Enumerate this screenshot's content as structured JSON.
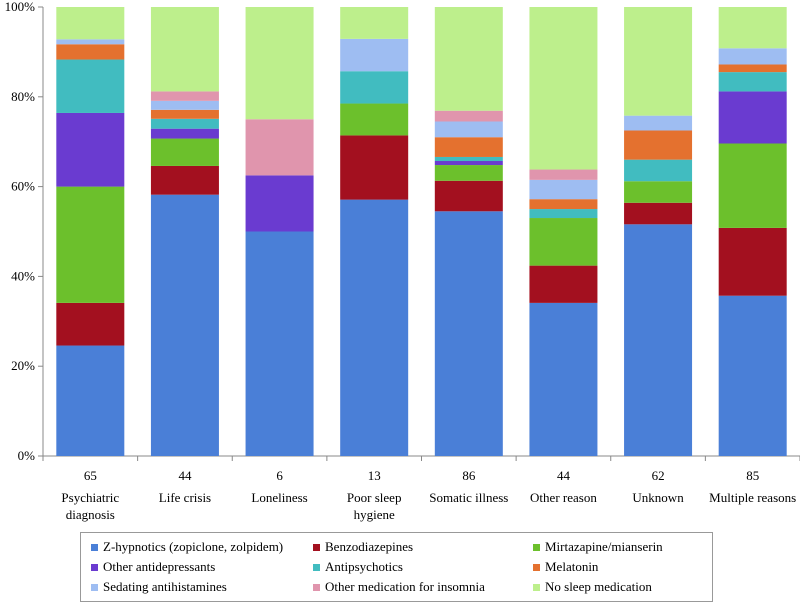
{
  "colors": {
    "Z-hypnotics (zopiclone, zolpidem)": "#4a7fd7",
    "Benzodiazepines": "#a3101f",
    "Mirtazapine/mianserin": "#6cc02c",
    "Other antidepressants": "#6a3bd0",
    "Antipsychotics": "#41bcc0",
    "Melatonin": "#e4712f",
    "Sedating antihistamines": "#9ebdf2",
    "Other medication for insomnia": "#e095ad",
    "No sleep medication": "#bdef8c"
  },
  "chart_data": {
    "type": "bar",
    "stacked": true,
    "title": "",
    "xlabel": "",
    "ylabel": "",
    "ylim": [
      0,
      100
    ],
    "yticks": [
      "0%",
      "20%",
      "40%",
      "60%",
      "80%",
      "100%"
    ],
    "categories": [
      "Psychiatric diagnosis",
      "Life crisis",
      "Loneliness",
      "Poor sleep hygiene",
      "Somatic illness",
      "Other reason",
      "Unknown",
      "Multiple reasons"
    ],
    "category_lines": [
      [
        "Psychiatric",
        "diagnosis"
      ],
      [
        "Life crisis"
      ],
      [
        "Loneliness"
      ],
      [
        "Poor sleep",
        "hygiene"
      ],
      [
        "Somatic illness"
      ],
      [
        "Other reason"
      ],
      [
        "Unknown"
      ],
      [
        "Multiple reasons"
      ]
    ],
    "counts": [
      "65",
      "44",
      "6",
      "13",
      "86",
      "44",
      "62",
      "85"
    ],
    "legend_position": "bottom",
    "series": [
      {
        "name": "Z-hypnotics (zopiclone, zolpidem)",
        "values": [
          24.6,
          58.2,
          50.0,
          57.1,
          54.5,
          34.1,
          51.6,
          35.7
        ]
      },
      {
        "name": "Benzodiazepines",
        "values": [
          9.5,
          6.4,
          0.0,
          14.3,
          6.8,
          8.3,
          4.8,
          15.1
        ]
      },
      {
        "name": "Mirtazapine/mianserin",
        "values": [
          25.9,
          6.1,
          0.0,
          7.1,
          3.5,
          10.6,
          4.8,
          18.8
        ]
      },
      {
        "name": "Other antidepressants",
        "values": [
          16.4,
          2.2,
          12.5,
          0.0,
          0.9,
          0.0,
          0.0,
          11.6
        ]
      },
      {
        "name": "Antipsychotics",
        "values": [
          11.9,
          2.2,
          0.0,
          7.2,
          0.9,
          2.0,
          4.8,
          4.3
        ]
      },
      {
        "name": "Melatonin",
        "values": [
          3.4,
          2.0,
          0.0,
          0.0,
          4.4,
          2.2,
          6.5,
          1.7
        ]
      },
      {
        "name": "Sedating antihistamines",
        "values": [
          1.1,
          2.0,
          0.0,
          7.2,
          3.5,
          4.3,
          3.3,
          3.6
        ]
      },
      {
        "name": "Other medication for insomnia",
        "values": [
          0.0,
          2.1,
          12.5,
          0.0,
          2.4,
          2.3,
          0.0,
          0.0
        ]
      },
      {
        "name": "No sleep medication",
        "values": [
          7.2,
          18.8,
          25.0,
          7.1,
          23.1,
          36.2,
          24.2,
          9.2
        ]
      }
    ]
  }
}
